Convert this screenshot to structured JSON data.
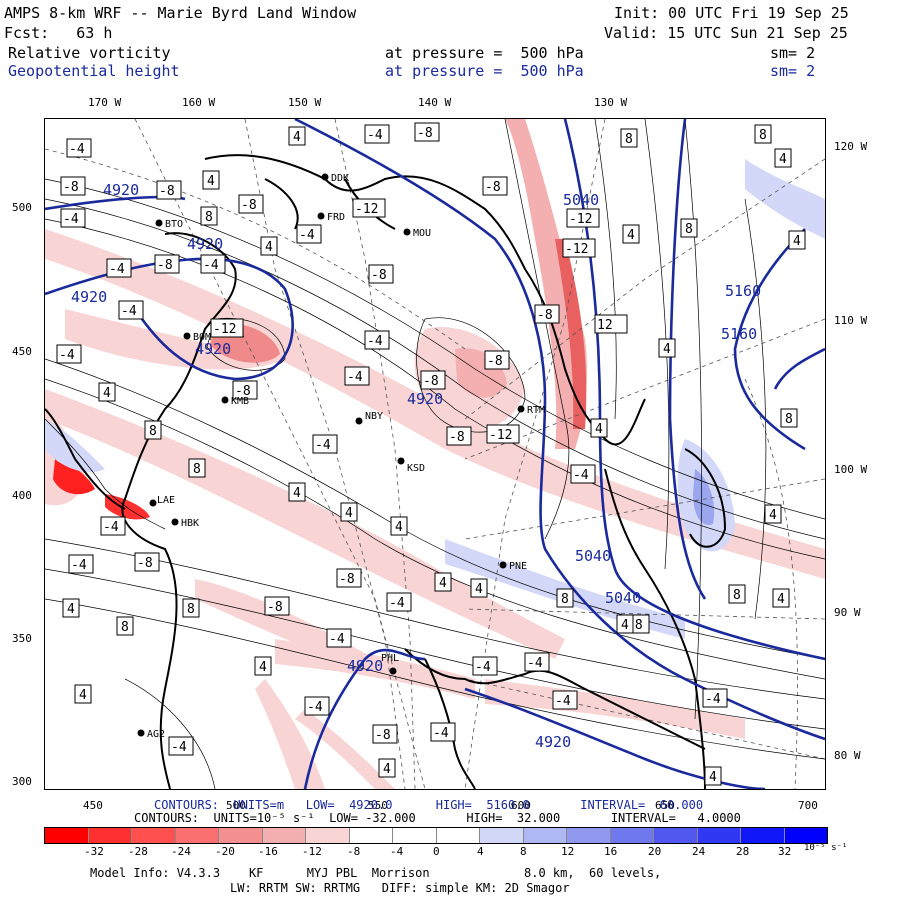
{
  "header": {
    "model_title": "AMPS 8-km WRF -- Marie Byrd Land Window",
    "init": "Init: 00 UTC Fri 19 Sep 25",
    "forecast": "Fcst:   63 h",
    "valid": "Valid: 15 UTC Sun 21 Sep 25",
    "field1_name": "Relative vorticity",
    "field1_level": "at pressure =  500 hPa",
    "field1_sm": "sm= 2",
    "field2_name": "Geopotential height",
    "field2_level": "at pressure =  500 hPa",
    "field2_sm": "sm= 2"
  },
  "axes": {
    "top_lon_labels": [
      "170 W",
      "160 W",
      "150 W",
      "140 W",
      "130 W"
    ],
    "right_lon_labels": [
      "120 W",
      "110 W",
      "100 W",
      "90 W",
      "80 W"
    ],
    "left_y_labels": [
      "500",
      "450",
      "400",
      "350",
      "300"
    ],
    "bottom_x_labels": [
      "450",
      "500",
      "550",
      "600",
      "650",
      "700"
    ]
  },
  "stations": [
    "DDK",
    "FRD",
    "MOU",
    "BTO",
    "BOM",
    "KMB",
    "NBY",
    "KSD",
    "RTM",
    "HBK",
    "LAE",
    "PNE",
    "PHL",
    "AG2"
  ],
  "contour_labels": {
    "height": [
      "4920",
      "4920",
      "4920",
      "4920",
      "4920",
      "4920",
      "4920",
      "5040",
      "5040",
      "5040",
      "5160",
      "5160"
    ],
    "vort": [
      "4",
      "-4",
      "8",
      "-8",
      "-12",
      "12"
    ]
  },
  "footer": {
    "height_contours": "CONTOURS:  UNITS=m   LOW=  4920.0      HIGH=  5160.0       INTERVAL=  60.000",
    "vort_contours": "CONTOURS:  UNITS=10⁻⁵ s⁻¹  LOW= -32.000       HIGH=  32.000       INTERVAL=   4.0000",
    "colorbar_labels": [
      "-32",
      "-28",
      "-24",
      "-20",
      "-16",
      "-12",
      "-8",
      "-4",
      "0",
      "4",
      "8",
      "12",
      "16",
      "20",
      "24",
      "28",
      "32"
    ],
    "colorbar_unit": "10⁻⁵ s⁻¹",
    "model_info_left": "Model Info: V4.3.3    KF      MYJ PBL  Morrison",
    "model_info_right": "8.0 km,  60 levels,",
    "model_info_line2": "LW: RRTM SW: RRTMG   DIFF: simple KM: 2D Smagor"
  },
  "colors": {
    "neg_strong": "#ff0000",
    "neg_light": "#f8d4d4",
    "pos_strong": "#0000ff",
    "pos_light": "#d4d8f8",
    "height_contour": "#1a2a9c",
    "text_blue": "#1a2a9c"
  }
}
